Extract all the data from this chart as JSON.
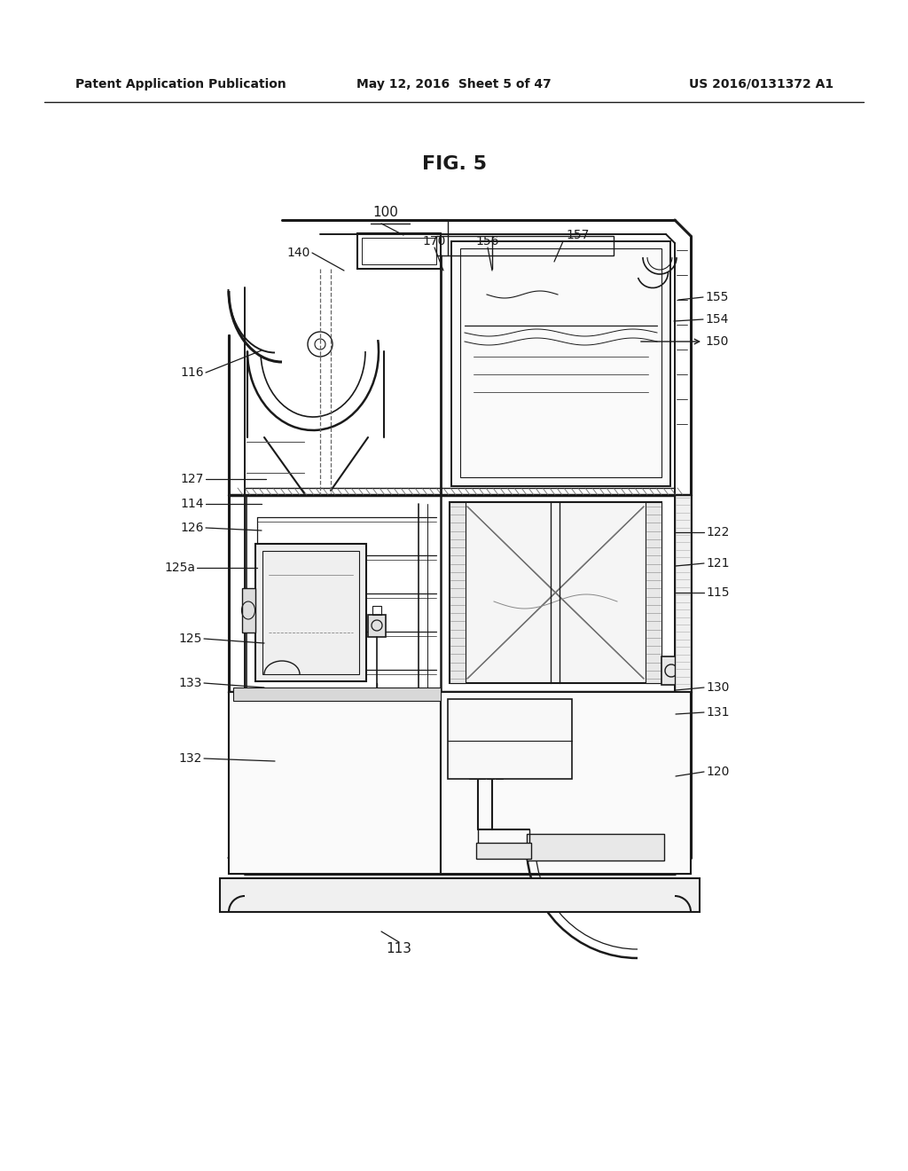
{
  "header_left": "Patent Application Publication",
  "header_mid": "May 12, 2016  Sheet 5 of 47",
  "header_right": "US 2016/0131372 A1",
  "fig_title": "FIG. 5",
  "background_color": "#ffffff",
  "line_color": "#1a1a1a",
  "fig_width": 10.24,
  "fig_height": 13.2,
  "dpi": 100
}
